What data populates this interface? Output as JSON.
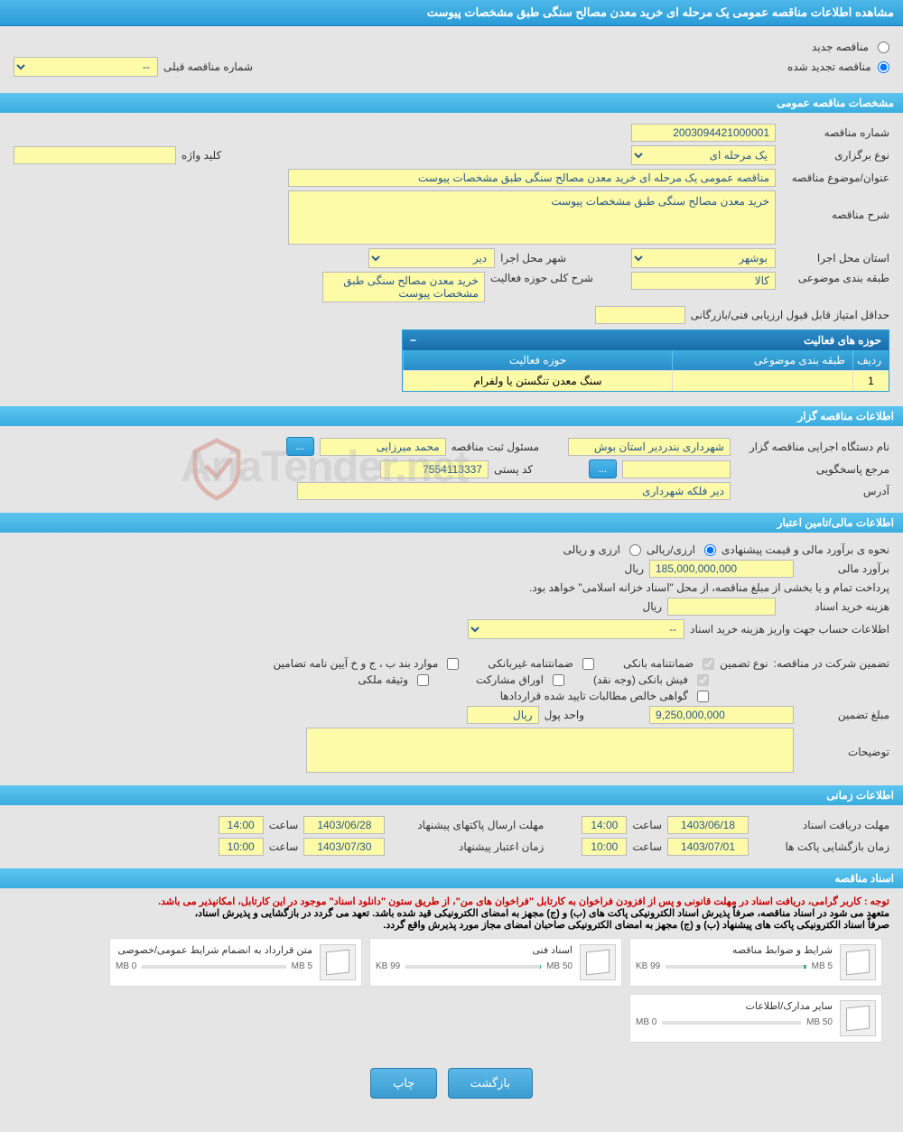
{
  "page_title": "مشاهده اطلاعات مناقصه عمومی یک مرحله ای خرید معدن مصالح سنگی طبق مشخصات پیوست",
  "tender_type": {
    "new_label": "مناقصه جدید",
    "renewed_label": "مناقصه تجدید شده",
    "prev_number_label": "شماره مناقصه قبلی",
    "prev_number_value": "--"
  },
  "general": {
    "section_title": "مشخصات مناقصه عمومی",
    "number_label": "شماره مناقصه",
    "number_value": "2003094421000001",
    "holding_type_label": "نوع برگزاری",
    "holding_type_value": "یک مرحله ای",
    "keyword_label": "کلید واژه",
    "keyword_value": "",
    "title_label": "عنوان/موضوع مناقصه",
    "title_value": "مناقصه عمومی یک مرحله ای خرید معدن مصالح سنگی طبق مشخصات پیوست",
    "desc_label": "شرح مناقصه",
    "desc_value": "خرید معدن مصالح سنگی طبق مشخصات پیوست",
    "province_label": "استان محل اجرا",
    "province_value": "بوشهر",
    "city_label": "شهر محل اجرا",
    "city_value": "دیر",
    "category_label": "طبقه بندی موضوعی",
    "category_value": "کالا",
    "activity_scope_label": "شرح کلی حوزه فعالیت",
    "activity_scope_value": "خرید معدن مصالح سنگی طبق مشخصات پیوست",
    "min_score_label": "حداقل امتیاز قابل قبول ارزیابی فنی/بازرگانی",
    "min_score_value": ""
  },
  "activity_table": {
    "title": "حوزه های فعالیت",
    "col_idx": "ردیف",
    "col_category": "طبقه بندی موضوعی",
    "col_activity": "حوزه فعالیت",
    "rows": [
      {
        "idx": "1",
        "category": "",
        "activity": "سنگ معدن تنگستن یا ولفرام"
      }
    ]
  },
  "organizer": {
    "section_title": "اطلاعات مناقصه گزار",
    "exec_label": "نام دستگاه اجرایی مناقصه گزار",
    "exec_value": "شهرداری بندردیر استان بوش",
    "registrant_label": "مسئول ثبت مناقصه",
    "registrant_value": "محمد میرزایی",
    "more_btn": "...",
    "responder_label": "مرجع پاسخگویی",
    "responder_value": "",
    "responder_btn": "...",
    "postal_label": "کد پستی",
    "postal_value": "7554113337",
    "address_label": "آدرس",
    "address_value": "دیر فلکه شهرداری"
  },
  "financial": {
    "section_title": "اطلاعات مالی/تامین اعتبار",
    "estimate_method_label": "نحوه ی برآورد مالی و قیمت پیشنهادی",
    "opt_currency_rial": "ارزی/ریالی",
    "opt_currency_both": "ارزی و ریالی",
    "estimate_label": "برآورد مالی",
    "estimate_value": "185,000,000,000",
    "currency_unit": "ریال",
    "payment_note": "پرداخت تمام و یا بخشی از مبلغ مناقصه، از محل \"اسناد خزانه اسلامی\" خواهد بود.",
    "doc_cost_label": "هزینه خرید اسناد",
    "doc_cost_value": "",
    "account_info_label": "اطلاعات حساب جهت واریز هزینه خرید اسناد",
    "account_info_value": "--",
    "guarantee_label": "تضمین شرکت در مناقصه:",
    "guarantee_type_label": "نوع تضمین",
    "opt_bank_guarantee": "ضمانتنامه بانکی",
    "opt_nonbank_guarantee": "ضمانتنامه غیربانکی",
    "opt_bylaw": "موارد بند ب ، ج و خ آیین نامه تضامین",
    "opt_bank_receipt": "فیش بانکی (وجه نقد)",
    "opt_bonds": "اوراق مشارکت",
    "opt_property": "وثیقه ملکی",
    "opt_certificate": "گواهی خالص مطالبات تایید شده قراردادها",
    "guarantee_amount_label": "مبلغ تضمین",
    "guarantee_amount_value": "9,250,000,000",
    "currency_unit_label": "واحد پول",
    "notes_label": "توضیحات",
    "notes_value": ""
  },
  "timing": {
    "section_title": "اطلاعات زمانی",
    "doc_receive_label": "مهلت دریافت اسناد",
    "doc_receive_date": "1403/06/18",
    "doc_receive_time": "14:00",
    "proposal_send_label": "مهلت ارسال پاکتهای پیشنهاد",
    "proposal_send_date": "1403/06/28",
    "proposal_send_time": "14:00",
    "envelope_open_label": "زمان بازگشایی پاکت ها",
    "envelope_open_date": "1403/07/01",
    "envelope_open_time": "10:00",
    "proposal_validity_label": "زمان اعتبار پیشنهاد",
    "proposal_validity_date": "1403/07/30",
    "proposal_validity_time": "10:00",
    "time_label": "ساعت"
  },
  "documents": {
    "section_title": "اسناد مناقصه",
    "notice_red": "توجه : کاربر گرامی، دریافت اسناد در مهلت قانونی و پس از افزودن فراخوان به کارتابل \"فراخوان های من\"، از طریق ستون \"دانلود اسناد\" موجود در این کارتابل، امکانپذیر می باشد.",
    "notice_black1": "متعهد می شود در اسناد مناقصه، صرفاً پذیرش اسناد الکترونیکی پاکت های (ب) و (ج) مجهز به امضای الکترونیکی قید شده باشد. تعهد می گردد در بازگشایی و پذیرش اسناد،",
    "notice_black2": "صرفاً اسناد الکترونیکی پاکت های پیشنهاد (ب) و (ج) مجهز به امضای الکترونیکی صاحبان امضای مجاز مورد پذیرش واقع گردد.",
    "docs": [
      {
        "title": "شرایط و ضوابط مناقصه",
        "used": "99 KB",
        "max": "5 MB",
        "fill": 2
      },
      {
        "title": "اسناد فنی",
        "used": "99 KB",
        "max": "50 MB",
        "fill": 0.5
      },
      {
        "title": "متن قرارداد به انضمام شرایط عمومی/خصوصی",
        "used": "0 MB",
        "max": "5 MB",
        "fill": 0
      },
      {
        "title": "سایر مدارک/اطلاعات",
        "used": "0 MB",
        "max": "50 MB",
        "fill": 0
      }
    ]
  },
  "buttons": {
    "back": "بازگشت",
    "print": "چاپ"
  },
  "watermark": "AriaTender.net"
}
